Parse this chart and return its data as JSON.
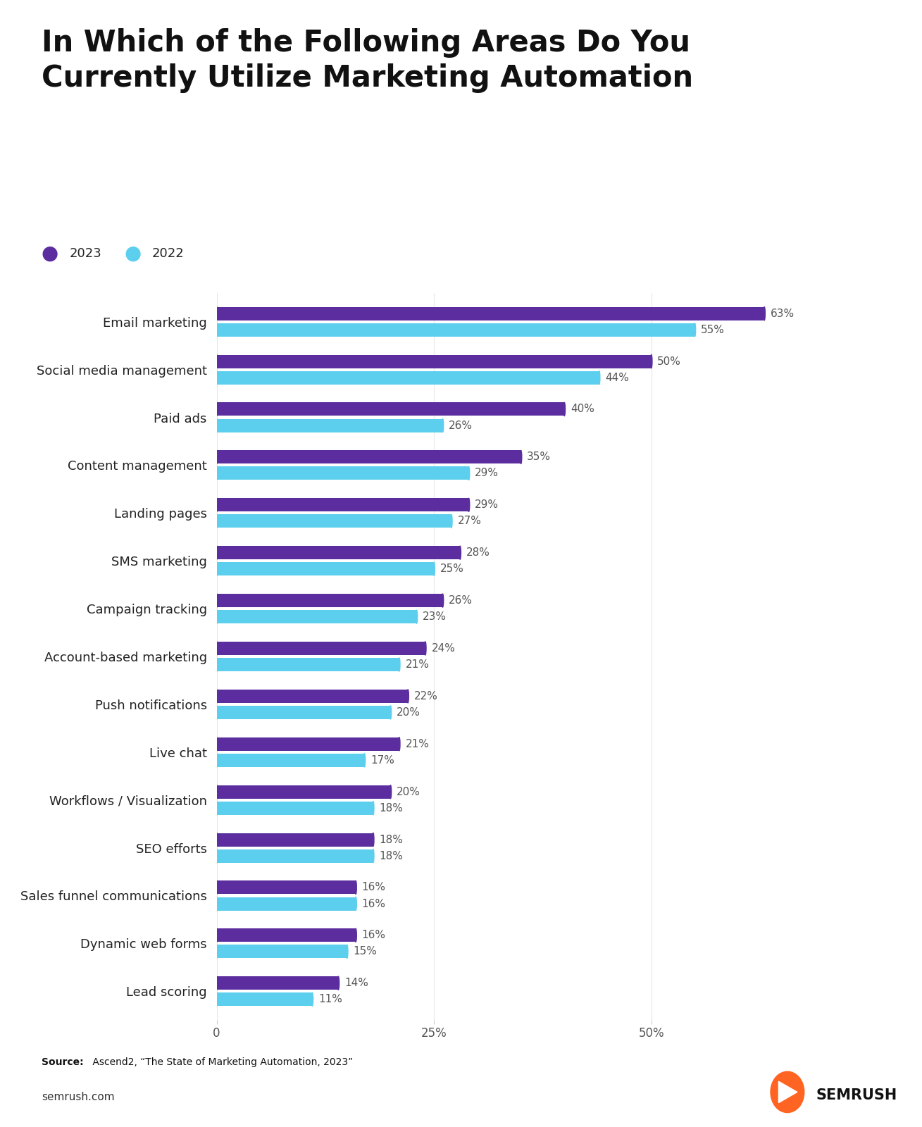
{
  "title_line1": "In Which of the Following Areas Do You",
  "title_line2": "Currently Utilize Marketing Automation",
  "categories": [
    "Email marketing",
    "Social media management",
    "Paid ads",
    "Content management",
    "Landing pages",
    "SMS marketing",
    "Campaign tracking",
    "Account-based marketing",
    "Push notifications",
    "Live chat",
    "Workflows / Visualization",
    "SEO efforts",
    "Sales funnel communications",
    "Dynamic web forms",
    "Lead scoring"
  ],
  "values_2023": [
    63,
    50,
    40,
    35,
    29,
    28,
    26,
    24,
    22,
    21,
    20,
    18,
    16,
    16,
    14
  ],
  "values_2022": [
    55,
    44,
    26,
    29,
    27,
    25,
    23,
    21,
    20,
    17,
    18,
    18,
    16,
    15,
    11
  ],
  "color_2023": "#5B2D9E",
  "color_2022": "#5BCFED",
  "label_2023": "2023",
  "label_2022": "2022",
  "xlim_max": 70,
  "xticks": [
    0,
    25,
    50
  ],
  "xtick_labels": [
    "0",
    "25%",
    "50%"
  ],
  "background_color": "#ffffff",
  "title_fontsize": 30,
  "category_fontsize": 13,
  "bar_label_fontsize": 11,
  "source_bold": "Source:",
  "source_normal": " Ascend2, “The State of Marketing Automation, 2023”",
  "footer_left": "semrush.com",
  "semrush_text": "SEMRUSH",
  "semrush_color": "#FF6422"
}
